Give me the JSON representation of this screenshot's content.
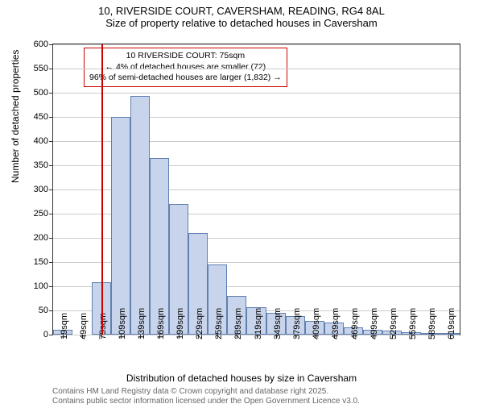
{
  "title": {
    "main": "10, RIVERSIDE COURT, CAVERSHAM, READING, RG4 8AL",
    "sub": "Size of property relative to detached houses in Caversham"
  },
  "chart": {
    "type": "histogram",
    "y_label": "Number of detached properties",
    "x_label": "Distribution of detached houses by size in Caversham",
    "ylim": [
      0,
      600
    ],
    "ytick_step": 50,
    "yticks": [
      0,
      50,
      100,
      150,
      200,
      250,
      300,
      350,
      400,
      450,
      500,
      550,
      600
    ],
    "xticks": [
      "19sqm",
      "49sqm",
      "79sqm",
      "109sqm",
      "139sqm",
      "169sqm",
      "199sqm",
      "229sqm",
      "259sqm",
      "289sqm",
      "319sqm",
      "349sqm",
      "379sqm",
      "409sqm",
      "439sqm",
      "469sqm",
      "499sqm",
      "529sqm",
      "559sqm",
      "589sqm",
      "619sqm"
    ],
    "bars": [
      10,
      0,
      108,
      450,
      493,
      365,
      270,
      210,
      145,
      80,
      56,
      45,
      38,
      28,
      25,
      15,
      10,
      8,
      5,
      4,
      3
    ],
    "bar_fill": "#c8d4eb",
    "bar_border": "#6080b0",
    "background_color": "#ffffff",
    "grid_color": "#cccccc",
    "border_color": "#333333",
    "marker": {
      "position_index": 2.5,
      "color": "#cc0000"
    },
    "annotation": {
      "line1": "10 RIVERSIDE COURT: 75sqm",
      "line2": "← 4% of detached houses are smaller (72)",
      "line3": "96% of semi-detached houses are larger (1,832) →",
      "border_color": "#cc0000"
    }
  },
  "credits": {
    "line1": "Contains HM Land Registry data © Crown copyright and database right 2025.",
    "line2": "Contains public sector information licensed under the Open Government Licence v3.0."
  }
}
